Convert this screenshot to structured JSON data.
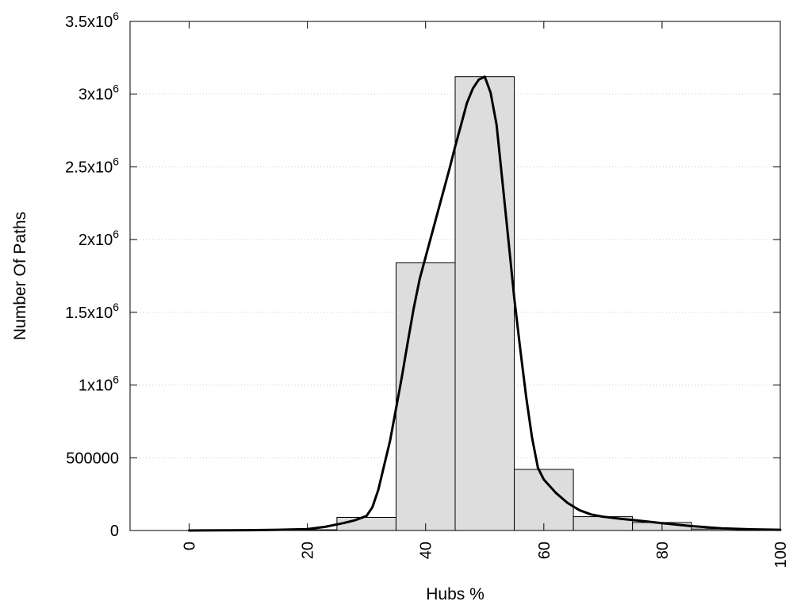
{
  "chart_data": {
    "type": "bar",
    "title": "",
    "xlabel": "Hubs %",
    "ylabel": "Number Of Paths",
    "xlim": [
      -10,
      100
    ],
    "ylim": [
      0,
      3500000
    ],
    "grid": true,
    "legend": "none",
    "bar_width": 10,
    "x_ticks": [
      0,
      20,
      40,
      60,
      80,
      100
    ],
    "x_tick_labels": [
      "0",
      "20",
      "40",
      "60",
      "80",
      "100"
    ],
    "y_ticks": [
      0,
      500000,
      1000000,
      1500000,
      2000000,
      2500000,
      3000000,
      3500000
    ],
    "y_tick_labels": [
      {
        "base": "0",
        "exp": ""
      },
      {
        "base": "500000",
        "exp": ""
      },
      {
        "base": "1x10",
        "exp": "6"
      },
      {
        "base": "1.5x10",
        "exp": "6"
      },
      {
        "base": "2x10",
        "exp": "6"
      },
      {
        "base": "2.5x10",
        "exp": "6"
      },
      {
        "base": "3x10",
        "exp": "6"
      },
      {
        "base": "3.5x10",
        "exp": "6"
      }
    ],
    "series": [
      {
        "type": "bar",
        "x": [
          0,
          10,
          20,
          30,
          40,
          50,
          60,
          70,
          80,
          90,
          100
        ],
        "values": [
          0,
          0,
          5000,
          90000,
          1840000,
          3120000,
          420000,
          95000,
          55000,
          10000,
          0
        ]
      },
      {
        "type": "line",
        "x": [
          0,
          10,
          15,
          20,
          23,
          26,
          28,
          30,
          31,
          32,
          34,
          35,
          36,
          37,
          38,
          39,
          40,
          42,
          44,
          45,
          46,
          47,
          48,
          49,
          50,
          51,
          52,
          53,
          54,
          55,
          56,
          57,
          58,
          59,
          60,
          62,
          64,
          66,
          68,
          70,
          73,
          76,
          80,
          85,
          90,
          95,
          100
        ],
        "values": [
          0,
          2000,
          5000,
          10000,
          25000,
          50000,
          70000,
          100000,
          160000,
          280000,
          620000,
          840000,
          1060000,
          1300000,
          1530000,
          1730000,
          1880000,
          2180000,
          2480000,
          2640000,
          2790000,
          2940000,
          3040000,
          3100000,
          3120000,
          3010000,
          2790000,
          2400000,
          2000000,
          1600000,
          1250000,
          920000,
          640000,
          430000,
          350000,
          260000,
          190000,
          140000,
          110000,
          95000,
          80000,
          68000,
          50000,
          30000,
          15000,
          8000,
          5000
        ]
      }
    ]
  }
}
